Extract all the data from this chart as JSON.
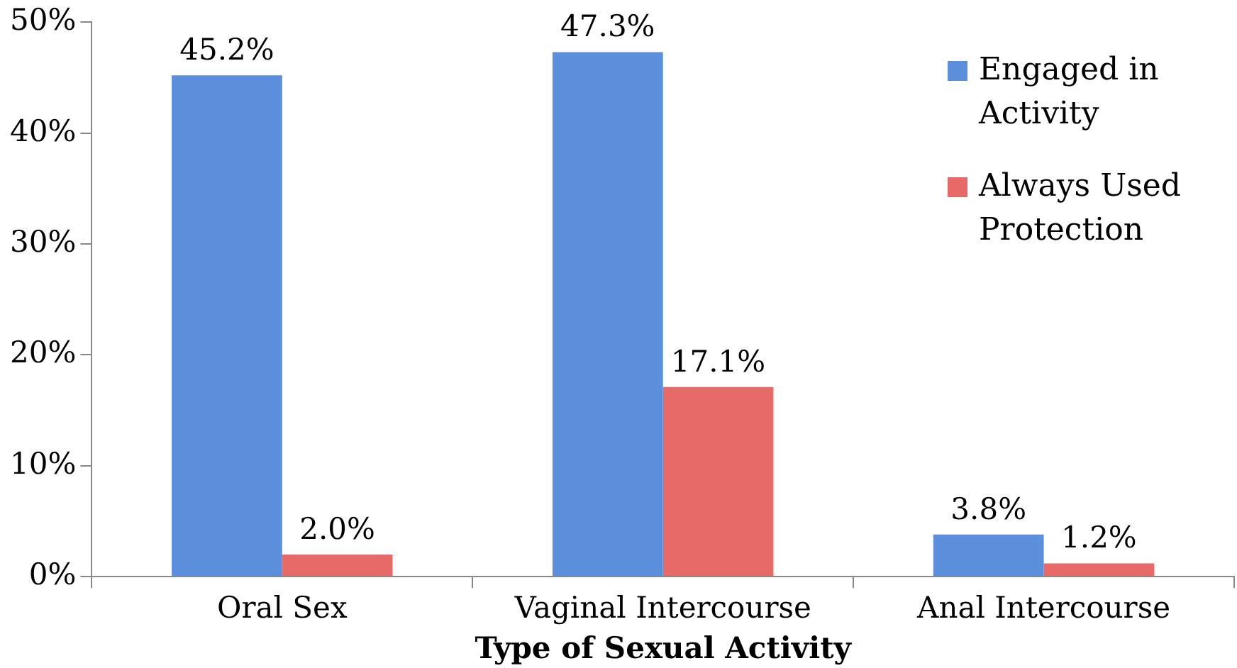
{
  "chart_data": {
    "type": "bar",
    "xlabel": "Type of Sexual Activity",
    "categories": [
      "Oral Sex",
      "Vaginal Intercourse",
      "Anal Intercourse"
    ],
    "series": [
      {
        "name": "Engaged in Activity",
        "color": "#5b8fdb",
        "values": [
          45.2,
          47.3,
          3.8
        ],
        "value_labels": [
          "45.2%",
          "47.3%",
          "3.8%"
        ]
      },
      {
        "name": "Always Used Protection",
        "color": "#e86a68",
        "values": [
          2.0,
          17.1,
          1.2
        ],
        "value_labels": [
          "2.0%",
          "17.1%",
          "1.2%"
        ]
      }
    ],
    "ylim": [
      0,
      50
    ],
    "yticks": [
      {
        "value": 0,
        "label": "0%"
      },
      {
        "value": 10,
        "label": "10%"
      },
      {
        "value": 20,
        "label": "20%"
      },
      {
        "value": 30,
        "label": "30%"
      },
      {
        "value": 40,
        "label": "40%"
      },
      {
        "value": 50,
        "label": "50%"
      }
    ],
    "grid": false,
    "legend": "top right"
  }
}
